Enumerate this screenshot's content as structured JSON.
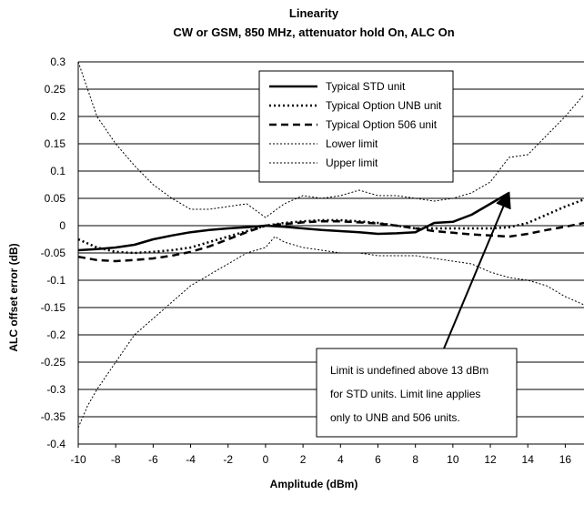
{
  "chart_data": {
    "type": "line",
    "title": "Linearity",
    "subtitle": "CW or GSM, 850 MHz, attenuator hold On, ALC On",
    "xlabel": "Amplitude (dBm)",
    "ylabel": "ALC offset error (dB)",
    "xlim": [
      -10,
      17
    ],
    "ylim": [
      -0.4,
      0.3
    ],
    "x_ticks": [
      -10,
      -8,
      -6,
      -4,
      -2,
      0,
      2,
      4,
      6,
      8,
      10,
      12,
      14,
      16
    ],
    "x_tick_labels": [
      "-10",
      "-8",
      "-6",
      "-4",
      "-2",
      "0",
      "2",
      "4",
      "6",
      "8",
      "10",
      "12",
      "14",
      "16"
    ],
    "y_ticks": [
      0.3,
      0.25,
      0.2,
      0.15,
      0.1,
      0.05,
      0,
      -0.05,
      -0.1,
      -0.15,
      -0.2,
      -0.25,
      -0.3,
      -0.35,
      -0.4
    ],
    "y_tick_labels": [
      "0.3",
      "0.25",
      "0.2",
      "0.15",
      "0.1",
      "0.05",
      "0",
      "-0.05",
      "-0.1",
      "-0.15",
      "-0.2",
      "-0.25",
      "-0.3",
      "-0.35",
      "-0.4"
    ],
    "grid": "horizontal",
    "legend_position": "top-center",
    "series": [
      {
        "name": "Typical STD unit",
        "style": "solid-thick",
        "x": [
          -10,
          -9,
          -8,
          -7,
          -6,
          -5,
          -4,
          -3,
          -2,
          -1,
          0,
          1,
          2,
          3,
          4,
          5,
          6,
          7,
          8,
          9,
          10,
          11,
          12,
          13
        ],
        "y": [
          -0.045,
          -0.043,
          -0.04,
          -0.035,
          -0.025,
          -0.018,
          -0.012,
          -0.008,
          -0.005,
          -0.003,
          0,
          -0.002,
          -0.005,
          -0.008,
          -0.01,
          -0.012,
          -0.015,
          -0.014,
          -0.012,
          0.005,
          0.007,
          0.02,
          0.04,
          0.06
        ]
      },
      {
        "name": "Typical Option UNB unit",
        "style": "dotted-thick",
        "x": [
          -10,
          -9,
          -8,
          -7,
          -6,
          -5,
          -4,
          -3,
          -2,
          -1,
          0,
          1,
          2,
          3,
          4,
          5,
          6,
          7,
          8,
          9,
          10,
          11,
          12,
          13,
          14,
          15,
          16,
          17
        ],
        "y": [
          -0.025,
          -0.04,
          -0.048,
          -0.05,
          -0.048,
          -0.045,
          -0.04,
          -0.03,
          -0.02,
          -0.01,
          0,
          0.005,
          0.008,
          0.01,
          0.01,
          0.008,
          0.005,
          0,
          -0.005,
          -0.005,
          -0.005,
          -0.005,
          -0.005,
          -0.003,
          0.005,
          0.02,
          0.035,
          0.048
        ]
      },
      {
        "name": "Typical Option 506 unit",
        "style": "dashed-thick",
        "x": [
          -10,
          -9,
          -8,
          -7,
          -6,
          -5,
          -4,
          -3,
          -2,
          -1,
          0,
          1,
          2,
          3,
          4,
          5,
          6,
          7,
          8,
          9,
          10,
          11,
          12,
          13,
          14,
          15,
          16,
          17
        ],
        "y": [
          -0.057,
          -0.063,
          -0.065,
          -0.063,
          -0.06,
          -0.055,
          -0.048,
          -0.038,
          -0.025,
          -0.012,
          0,
          0.003,
          0.006,
          0.008,
          0.008,
          0.006,
          0.004,
          0,
          -0.005,
          -0.01,
          -0.013,
          -0.016,
          -0.018,
          -0.02,
          -0.015,
          -0.008,
          -0.002,
          0.005
        ]
      },
      {
        "name": "Lower limit",
        "style": "dotted-thin",
        "x": [
          -10,
          -9.5,
          -9,
          -8,
          -7,
          -6,
          -5,
          -4,
          -3,
          -2,
          -1,
          0,
          0.5,
          1,
          2,
          3,
          4,
          5,
          6,
          7,
          8,
          9,
          10,
          11,
          12,
          13,
          14,
          15,
          16,
          17
        ],
        "y": [
          -0.37,
          -0.33,
          -0.3,
          -0.25,
          -0.2,
          -0.17,
          -0.14,
          -0.11,
          -0.09,
          -0.07,
          -0.05,
          -0.04,
          -0.02,
          -0.03,
          -0.04,
          -0.045,
          -0.05,
          -0.05,
          -0.055,
          -0.055,
          -0.055,
          -0.06,
          -0.065,
          -0.07,
          -0.085,
          -0.095,
          -0.1,
          -0.11,
          -0.13,
          -0.145
        ]
      },
      {
        "name": "Upper limit",
        "style": "dotted-thin",
        "x": [
          -10,
          -9.5,
          -9,
          -8,
          -7,
          -6,
          -5,
          -4,
          -3,
          -2,
          -1,
          0,
          1,
          2,
          3,
          4,
          5,
          6,
          7,
          8,
          9,
          10,
          11,
          12,
          13,
          14,
          15,
          16,
          17
        ],
        "y": [
          0.3,
          0.25,
          0.2,
          0.15,
          0.11,
          0.075,
          0.05,
          0.03,
          0.03,
          0.035,
          0.04,
          0.015,
          0.04,
          0.055,
          0.05,
          0.055,
          0.065,
          0.055,
          0.055,
          0.05,
          0.045,
          0.05,
          0.06,
          0.08,
          0.125,
          0.13,
          0.165,
          0.2,
          0.24
        ]
      }
    ],
    "annotation": {
      "lines": [
        "Limit is undefined above 13 dBm",
        "for STD units. Limit line applies",
        "only to UNB and 506 units."
      ],
      "arrow_to": {
        "x": 13,
        "y": 0.06
      }
    }
  }
}
